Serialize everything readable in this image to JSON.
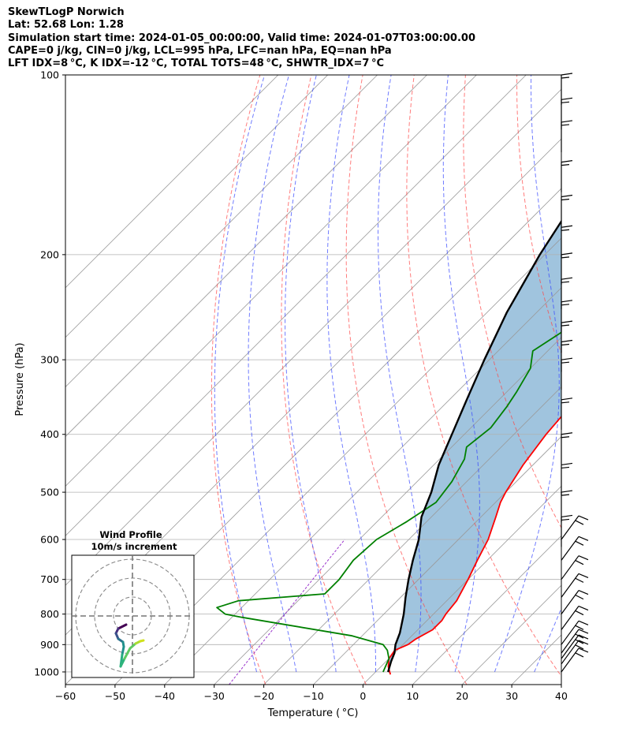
{
  "header": {
    "title": "SkewTLogP Norwich",
    "location": "Lat: 52.68   Lon: 1.28",
    "times": "Simulation start time: 2024-01-05_00:00:00, Valid time: 2024-01-07T03:00:00.00",
    "indices1": "CAPE=0 j/kg, CIN=0 j/kg, LCL=995 hPa, LFC=nan hPa, EQ=nan hPa",
    "indices2": "LFT IDX=8$^\\circ$C, K IDX=-12$^\\circ$C, TOTAL TOTS=48$^\\circ$C, SHWTR_IDX=7$^\\circ$C"
  },
  "header_display": {
    "indices2": "LFT IDX=8 °C, K IDX=-12 °C, TOTAL TOTS=48 °C, SHWTR_IDX=7 °C"
  },
  "colors": {
    "temperature": "#ff0000",
    "dewpoint": "#008000",
    "parcel": "#000000",
    "cape_fill": "#a0c4de",
    "dry_adiabat": "#ff4444",
    "moist_adiabat": "#3344ff",
    "isotherm": "#999999",
    "mixing_ratio": "#9933cc"
  },
  "chart_data": {
    "type": "line",
    "subtype": "skew-T log-P",
    "xlabel": "Temperature ($^\\circ$C)",
    "xlabel_display": "Temperature ( °C)",
    "ylabel": "Pressure (hPa)",
    "xlim": [
      -60,
      40
    ],
    "ylim": [
      1050,
      100
    ],
    "y_scale": "log",
    "grid": true,
    "x_ticks": [
      -60,
      -50,
      -40,
      -30,
      -20,
      -10,
      0,
      10,
      20,
      30,
      40
    ],
    "y_ticks": [
      100,
      200,
      300,
      400,
      500,
      600,
      700,
      800,
      900,
      1000
    ],
    "series": [
      {
        "name": "Temperature",
        "points_skewed_x_vs_p": [
          [
            3.5,
            1010
          ],
          [
            1.5,
            980
          ],
          [
            0,
            950
          ],
          [
            -0.5,
            920
          ],
          [
            1,
            900
          ],
          [
            1.5,
            880
          ],
          [
            3,
            850
          ],
          [
            3,
            820
          ],
          [
            2.5,
            800
          ],
          [
            2,
            760
          ],
          [
            0,
            700
          ],
          [
            -2,
            650
          ],
          [
            -4,
            600
          ],
          [
            -7,
            550
          ],
          [
            -9,
            520
          ],
          [
            -10,
            500
          ],
          [
            -12,
            450
          ],
          [
            -13.5,
            400
          ],
          [
            -14.5,
            350
          ],
          [
            -14.5,
            330
          ],
          [
            -12,
            290
          ],
          [
            -11,
            270
          ],
          [
            -9,
            260
          ],
          [
            -7,
            250
          ],
          [
            -5,
            240
          ],
          [
            -4,
            230
          ],
          [
            -3.5,
            220
          ],
          [
            -3,
            210
          ],
          [
            -2,
            200
          ],
          [
            -1,
            190
          ],
          [
            0,
            180
          ],
          [
            3,
            170
          ],
          [
            5,
            160
          ],
          [
            7,
            150
          ],
          [
            9,
            140
          ],
          [
            10,
            135
          ],
          [
            11,
            130
          ],
          [
            12,
            125
          ],
          [
            13,
            120
          ],
          [
            14,
            115
          ],
          [
            15,
            110
          ],
          [
            16,
            107
          ],
          [
            17,
            104
          ],
          [
            18,
            100
          ]
        ]
      },
      {
        "name": "Dewpoint",
        "points_skewed_x_vs_p": [
          [
            1.5,
            1000
          ],
          [
            0,
            950
          ],
          [
            -2,
            920
          ],
          [
            -4,
            900
          ],
          [
            -12,
            870
          ],
          [
            -38,
            810
          ],
          [
            -42,
            800
          ],
          [
            -45,
            780
          ],
          [
            -42,
            760
          ],
          [
            -26,
            740
          ],
          [
            -26,
            700
          ],
          [
            -27,
            650
          ],
          [
            -26.5,
            600
          ],
          [
            -24,
            560
          ],
          [
            -22,
            520
          ],
          [
            -23,
            480
          ],
          [
            -25,
            440
          ],
          [
            -27,
            420
          ],
          [
            -26,
            390
          ],
          [
            -27,
            360
          ],
          [
            -28,
            340
          ],
          [
            -30,
            310
          ],
          [
            -33,
            290
          ],
          [
            -31,
            270
          ],
          [
            -29,
            250
          ],
          [
            -27.5,
            230
          ],
          [
            -27,
            220
          ],
          [
            -26,
            200
          ],
          [
            -26.5,
            190
          ],
          [
            -26,
            180
          ],
          [
            -26,
            170
          ],
          [
            -25,
            165
          ],
          [
            -23,
            155
          ],
          [
            -21,
            145
          ],
          [
            -19,
            135
          ],
          [
            -17,
            125
          ],
          [
            -14,
            115
          ],
          [
            -12,
            105
          ],
          [
            -10,
            100
          ]
        ]
      },
      {
        "name": "Parcel",
        "points_skewed_x_vs_p": [
          [
            2.5,
            1000
          ],
          [
            1,
            960
          ],
          [
            0,
            930
          ],
          [
            -1.5,
            900
          ],
          [
            -3,
            860
          ],
          [
            -6,
            800
          ],
          [
            -9,
            750
          ],
          [
            -12,
            700
          ],
          [
            -15,
            650
          ],
          [
            -18,
            600
          ],
          [
            -22,
            550
          ],
          [
            -25,
            500
          ],
          [
            -29,
            450
          ],
          [
            -32.5,
            400
          ],
          [
            -36.5,
            350
          ],
          [
            -41,
            300
          ],
          [
            -46,
            250
          ],
          [
            -51,
            200
          ],
          [
            -54,
            170
          ],
          [
            -56,
            150
          ],
          [
            -58,
            130
          ],
          [
            -59.5,
            115
          ],
          [
            -60.7,
            100
          ]
        ]
      }
    ],
    "wind_barbs": {
      "pressures": [
        1000,
        970,
        950,
        930,
        900,
        850,
        800,
        750,
        700,
        650,
        600,
        550,
        500,
        450,
        400,
        350,
        300,
        280,
        260,
        240,
        220,
        200,
        180,
        160,
        140,
        120,
        110,
        100
      ]
    }
  },
  "hodograph": {
    "title": "Wind Profile",
    "subtitle": "10m/s increment"
  }
}
